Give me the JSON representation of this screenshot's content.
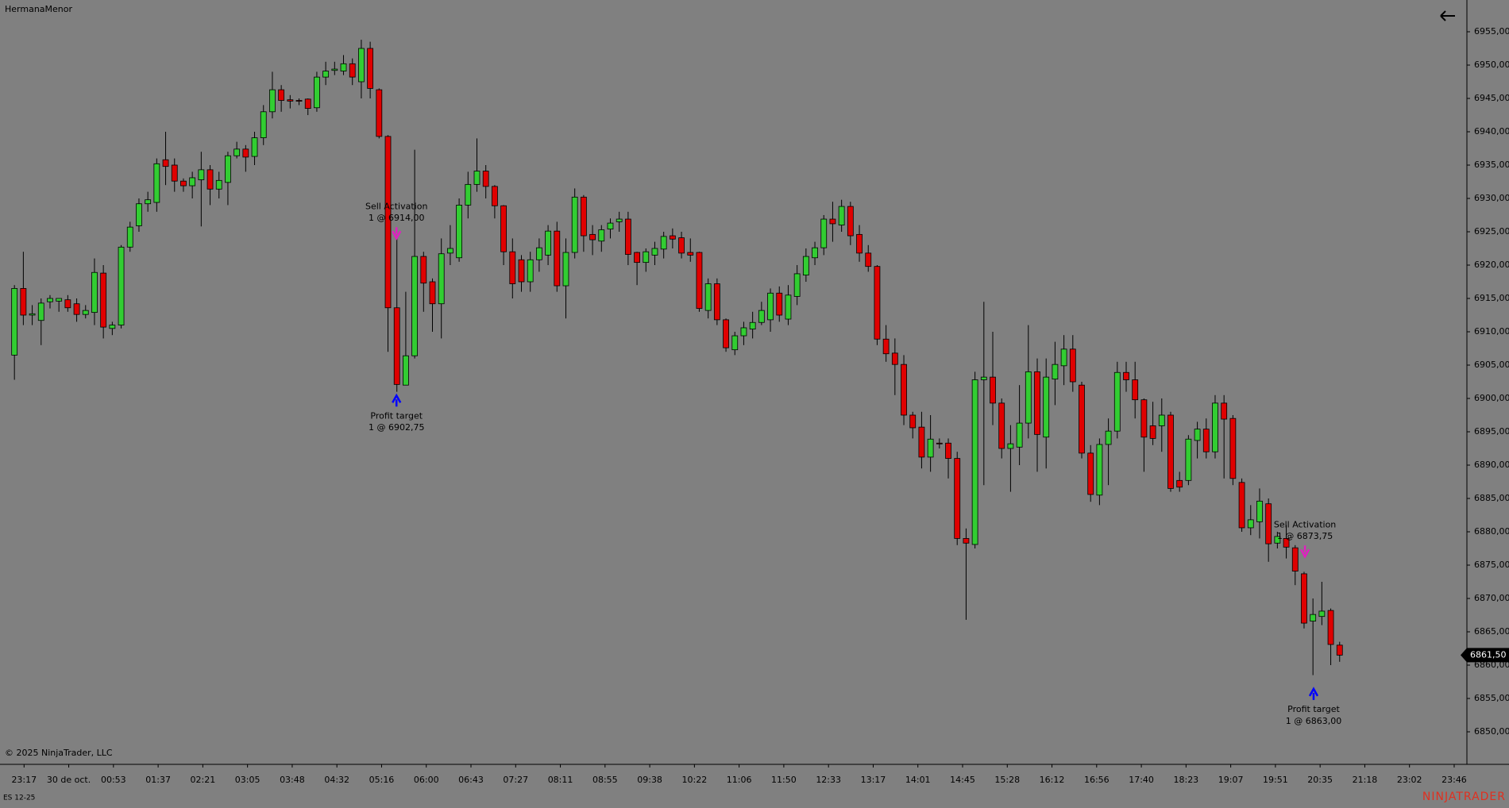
{
  "header": {
    "title": "HermanaMenor"
  },
  "chart_data": {
    "type": "candlestick",
    "up_color": "#32cd32",
    "down_color": "#e00000",
    "background": "#808080",
    "open": [
      6906.5,
      6916.5,
      6912.5,
      6911.7,
      6914.5,
      6914.6,
      6914.8,
      6914.2,
      6912.6,
      6912.9,
      6918.8,
      6910.5,
      6911,
      6922.7,
      6925.9,
      6929.2,
      6929.4,
      6935.8,
      6935,
      6932.6,
      6931.9,
      6932.8,
      6934.3,
      6931.4,
      6932.4,
      6936.4,
      6937.4,
      6936.3,
      6939.1,
      6943,
      6946.3,
      6944.8,
      6944.7,
      6944.9,
      6943.6,
      6948.2,
      6949.2,
      6949.1,
      6950.2,
      6947.5,
      6952.5,
      6946.3,
      6939.3,
      6913.6,
      6902,
      6906.4,
      6921.3,
      6917.5,
      6914.2,
      6921.8,
      6921.1,
      6929,
      6932.1,
      6934.1,
      6931.8,
      6928.9,
      6922,
      6920.8,
      6917.5,
      6920.8,
      6921.5,
      6925.1,
      6916.9,
      6921.9,
      6930.2,
      6924.6,
      6923.6,
      6925.4,
      6926.5,
      6926.9,
      6921.9,
      6920.4,
      6921.5,
      6922.4,
      6924.4,
      6924.1,
      6921.9,
      6921.9,
      6913.2,
      6917.2,
      6911.8,
      6907.3,
      6909.4,
      6910.4,
      6911.4,
      6911.8,
      6915.8,
      6911.9,
      6915.3,
      6918.5,
      6921.1,
      6922.6,
      6926.9,
      6926,
      6928.8,
      6924.6,
      6921.8,
      6919.8,
      6908.9,
      6906.8,
      6905.1,
      6897.5,
      6895.7,
      6891.2,
      6893.3,
      6893.3,
      6891,
      6879,
      6878.1,
      6902.8,
      6903.2,
      6899.3,
      6892.5,
      6892.7,
      6896.3,
      6904,
      6894.2,
      6902.9,
      6904.9,
      6907.4,
      6902,
      6891.8,
      6885.5,
      6893.1,
      6895.1,
      6903.9,
      6902.8,
      6899.8,
      6895.9,
      6895.9,
      6897.5,
      6887.7,
      6887.7,
      6893.7,
      6895.4,
      6892,
      6899.3,
      6897,
      6887.4,
      6880.6,
      6881.5,
      6884.2,
      6878.3,
      6879,
      6877.6,
      6873.7,
      6866.6,
      6867.3,
      6868.2,
      6863
    ],
    "high": [
      6917,
      6922,
      6914,
      6915,
      6915.5,
      6915,
      6915.5,
      6915,
      6914,
      6921,
      6920,
      6911.5,
      6923,
      6926.5,
      6930,
      6931,
      6936,
      6940,
      6936,
      6933,
      6934,
      6937,
      6935,
      6934,
      6937,
      6938.5,
      6938,
      6940,
      6944,
      6949,
      6947,
      6945.5,
      6945,
      6945,
      6949,
      6950.5,
      6950.5,
      6951.5,
      6951,
      6953.8,
      6953.5,
      6946.5,
      6939.5,
      6924,
      6916,
      6937.3,
      6922,
      6918,
      6924,
      6926,
      6930,
      6934,
      6939,
      6935,
      6932,
      6929,
      6924,
      6921.5,
      6922,
      6924,
      6926,
      6926.5,
      6924,
      6931.5,
      6930.5,
      6926,
      6926,
      6927,
      6928,
      6928,
      6922,
      6922.5,
      6923.5,
      6925,
      6925.5,
      6925,
      6924,
      6922,
      6918,
      6918,
      6912,
      6910,
      6911.5,
      6913,
      6914.5,
      6916.5,
      6916.8,
      6917,
      6920,
      6922.5,
      6923.5,
      6927.5,
      6929.5,
      6929.8,
      6929.5,
      6926,
      6923,
      6920,
      6911,
      6909,
      6906.5,
      6898,
      6898,
      6897.5,
      6894,
      6894,
      6892,
      6880.5,
      6904,
      6914.5,
      6910,
      6900,
      6896,
      6902,
      6911,
      6906,
      6906,
      6908.5,
      6909.5,
      6909.5,
      6902.5,
      6893,
      6894,
      6897,
      6905.5,
      6905.5,
      6905.5,
      6900,
      6899.5,
      6900,
      6898,
      6889,
      6894.5,
      6896.5,
      6897,
      6900.5,
      6900.5,
      6897.5,
      6888,
      6884,
      6886.5,
      6885,
      6880,
      6881,
      6878,
      6874,
      6870,
      6872.5,
      6868.5,
      6863.5
    ],
    "low": [
      6902.8,
      6911,
      6911,
      6908,
      6913.5,
      6913,
      6913,
      6911.5,
      6912,
      6911,
      6909,
      6909.5,
      6910.5,
      6922,
      6925,
      6928,
      6928,
      6932,
      6931,
      6931,
      6930,
      6925.8,
      6929,
      6930,
      6929,
      6936,
      6934,
      6935,
      6938,
      6942,
      6943,
      6943.5,
      6944,
      6942.5,
      6943,
      6947,
      6948.5,
      6948.5,
      6947,
      6945,
      6945,
      6939,
      6907,
      6901,
      6902,
      6906,
      6913,
      6910,
      6909,
      6920,
      6920.5,
      6927,
      6931,
      6930,
      6927,
      6920,
      6915,
      6916,
      6916,
      6919,
      6920,
      6916,
      6912,
      6921,
      6922,
      6921.5,
      6922,
      6924,
      6925,
      6920,
      6917,
      6919,
      6920,
      6921,
      6922.5,
      6921,
      6920.5,
      6913,
      6912,
      6911,
      6907,
      6906.5,
      6908,
      6909,
      6911,
      6910,
      6911.5,
      6911,
      6914,
      6917.5,
      6920,
      6921.5,
      6923.5,
      6925,
      6923,
      6920.5,
      6919,
      6908,
      6905.5,
      6900.5,
      6896,
      6894,
      6889.5,
      6889,
      6892.5,
      6888,
      6878,
      6866.8,
      6877.5,
      6887,
      6896,
      6891,
      6886,
      6890,
      6894,
      6889,
      6889.5,
      6899,
      6902,
      6901,
      6891,
      6884.5,
      6884,
      6887,
      6894,
      6901,
      6897,
      6889,
      6893,
      6892,
      6886,
      6886,
      6887,
      6891,
      6891,
      6891,
      6888,
      6887,
      6880,
      6879.5,
      6879,
      6875.5,
      6877.5,
      6876,
      6872,
      6865.5,
      6858.5,
      6866,
      6860,
      6860.5
    ],
    "close": [
      6916.5,
      6912.5,
      6912.7,
      6914.3,
      6915,
      6915,
      6913.6,
      6912.6,
      6913.2,
      6918.9,
      6910.7,
      6911,
      6922.7,
      6925.7,
      6929.2,
      6929.8,
      6935.2,
      6934.8,
      6932.6,
      6931.9,
      6933.1,
      6934.3,
      6931.4,
      6932.7,
      6936.4,
      6937.4,
      6936.2,
      6939.1,
      6943,
      6946.3,
      6944.7,
      6944.6,
      6944.6,
      6943.5,
      6948.2,
      6949.1,
      6949.4,
      6950.2,
      6948.2,
      6952.5,
      6946.5,
      6939.3,
      6913.6,
      6902.1,
      6906.4,
      6921.3,
      6917.3,
      6914.2,
      6921.7,
      6922.5,
      6929,
      6932.1,
      6934.1,
      6931.8,
      6928.9,
      6922,
      6917.2,
      6917.5,
      6920.8,
      6922.6,
      6925.1,
      6916.9,
      6921.9,
      6930.2,
      6924.4,
      6923.8,
      6925.3,
      6926.3,
      6926.9,
      6921.6,
      6920.4,
      6922,
      6922.5,
      6924.3,
      6923.9,
      6921.8,
      6921.5,
      6913.5,
      6917.2,
      6911.8,
      6907.6,
      6909.4,
      6910.6,
      6911.4,
      6913.2,
      6915.8,
      6912.5,
      6915.5,
      6918.7,
      6921.3,
      6922.6,
      6926.9,
      6926.2,
      6928.8,
      6924.4,
      6921.8,
      6919.8,
      6908.9,
      6906.7,
      6905.1,
      6897.5,
      6895.6,
      6891.2,
      6893.9,
      6893.2,
      6891,
      6879,
      6878.3,
      6902.8,
      6903.2,
      6899.3,
      6892.5,
      6893.2,
      6896.3,
      6904,
      6894.6,
      6903.2,
      6905.1,
      6907.4,
      6902.5,
      6891.8,
      6885.6,
      6893.1,
      6895.1,
      6903.9,
      6902.8,
      6899.8,
      6894.2,
      6894,
      6897.5,
      6886.5,
      6886.7,
      6893.9,
      6895.4,
      6892,
      6899.3,
      6896.9,
      6888,
      6880.6,
      6881.8,
      6884.6,
      6878.2,
      6879.3,
      6877.7,
      6874.1,
      6866.3,
      6867.6,
      6868.1,
      6863.1,
      6861.5
    ],
    "ylim": [
      6845,
      6960
    ],
    "yticks": [
      {
        "value": 6850,
        "label": "6850,00"
      },
      {
        "value": 6855,
        "label": "6855,00"
      },
      {
        "value": 6860,
        "label": "6860,00"
      },
      {
        "value": 6865,
        "label": "6865,00"
      },
      {
        "value": 6870,
        "label": "6870,00"
      },
      {
        "value": 6875,
        "label": "6875,00"
      },
      {
        "value": 6880,
        "label": "6880,00"
      },
      {
        "value": 6885,
        "label": "6885,00"
      },
      {
        "value": 6890,
        "label": "6890,00"
      },
      {
        "value": 6895,
        "label": "6895,00"
      },
      {
        "value": 6900,
        "label": "6900,00"
      },
      {
        "value": 6905,
        "label": "6905,00"
      },
      {
        "value": 6910,
        "label": "6910,00"
      },
      {
        "value": 6915,
        "label": "6915,00"
      },
      {
        "value": 6920,
        "label": "6920,00"
      },
      {
        "value": 6925,
        "label": "6925,00"
      },
      {
        "value": 6930,
        "label": "6930,00"
      },
      {
        "value": 6935,
        "label": "6935,00"
      },
      {
        "value": 6940,
        "label": "6940,00"
      },
      {
        "value": 6945,
        "label": "6945,00"
      },
      {
        "value": 6950,
        "label": "6950,00"
      },
      {
        "value": 6955,
        "label": "6955,00"
      }
    ],
    "x_labels": [
      "23:17",
      "30 de oct.",
      "00:53",
      "01:37",
      "02:21",
      "03:05",
      "03:48",
      "04:32",
      "05:16",
      "06:00",
      "06:43",
      "07:27",
      "08:11",
      "08:55",
      "09:38",
      "10:22",
      "11:06",
      "11:50",
      "12:33",
      "13:17",
      "14:01",
      "14:45",
      "15:28",
      "16:12",
      "16:56",
      "17:40",
      "18:23",
      "19:07",
      "19:51",
      "20:35",
      "21:18",
      "23:02",
      "23:46"
    ],
    "last_price": {
      "value": 6861.5,
      "label": "6861,50"
    },
    "annotations": [
      {
        "title": "Sell Activation",
        "detail": "1 @ 6914,00"
      },
      {
        "title": "Profit target",
        "detail": "1 @ 6902,75"
      },
      {
        "title": "Sell Activation",
        "detail": "1 @ 6873,75"
      },
      {
        "title": "Profit target",
        "detail": "1 @ 6863,00"
      }
    ]
  },
  "footer": {
    "copyright": "© 2025 NinjaTrader, LLC",
    "instrument": "ES 12-25",
    "brand": "NINJATRADER"
  }
}
